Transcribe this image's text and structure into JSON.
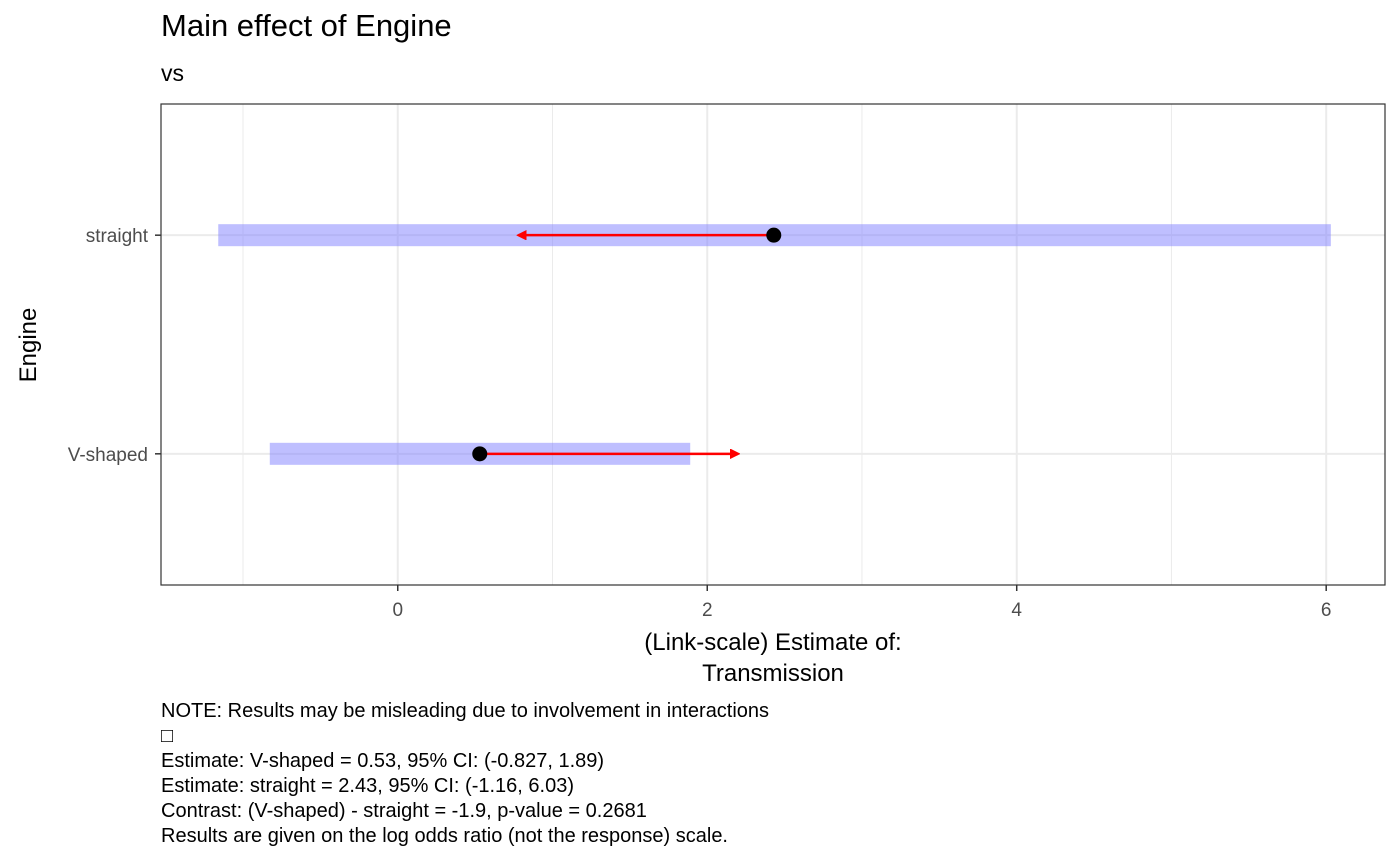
{
  "chart_data": {
    "type": "forest-arrow",
    "title": "Main effect of Engine",
    "subtitle": "vs",
    "xlabel": [
      "(Link-scale) Estimate of:",
      "Transmission"
    ],
    "ylabel": "Engine",
    "xlim": [
      -1.53,
      6.38
    ],
    "xticks": [
      0,
      2,
      4,
      6
    ],
    "categories": [
      "V-shaped",
      "straight"
    ],
    "estimates": [
      {
        "category": "V-shaped",
        "estimate": 0.53,
        "ci_low": -0.827,
        "ci_high": 1.89,
        "arrow_to": 2.2
      },
      {
        "category": "straight",
        "estimate": 2.43,
        "ci_low": -1.16,
        "ci_high": 6.03,
        "arrow_to": 0.78
      }
    ],
    "grid": true,
    "colors": {
      "ci_band": "#7f7fff",
      "arrow": "#ff0000",
      "point": "#000000",
      "grid": "#ebebeb",
      "panel_border": "#333333"
    }
  },
  "caption": {
    "lines": [
      "NOTE: Results may be misleading due to involvement in interactions",
      "□",
      "Estimate: V-shaped = 0.53, 95% CI: (-0.827, 1.89)",
      "Estimate: straight = 2.43, 95% CI: (-1.16, 6.03)",
      "Contrast: (V-shaped) - straight = -1.9, p-value = 0.2681",
      "Results are given on the log odds ratio (not the response) scale."
    ]
  }
}
